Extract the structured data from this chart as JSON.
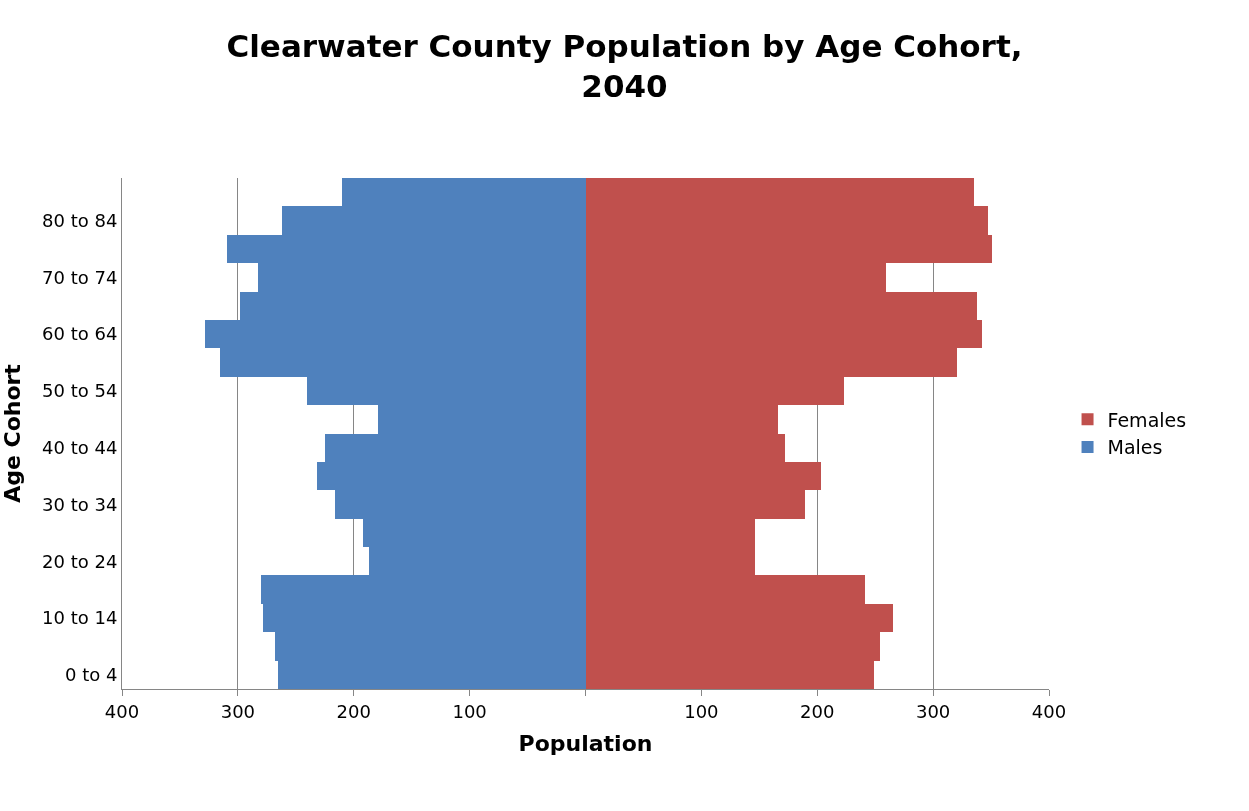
{
  "chart_data": {
    "type": "bar",
    "orientation": "horizontal",
    "stacked": true,
    "title": "Clearwater County Population by Age Cohort, 2040",
    "xlabel": "Population",
    "ylabel": "Age Cohort",
    "categories": [
      null,
      "80 to 84",
      null,
      "70 to 74",
      null,
      "60 to 64",
      null,
      "50 to 54",
      null,
      "40 to 44",
      null,
      "30 to 34",
      null,
      "20 to 24",
      null,
      "10 to 14",
      null,
      "0 to 4"
    ],
    "series": [
      {
        "name": "Males",
        "color": "#4f81bd",
        "values": [
          -210,
          -262,
          -309,
          -283,
          -298,
          -328,
          -315,
          -240,
          -179,
          -225,
          -232,
          -216,
          -192,
          -187,
          -280,
          -278,
          -268,
          -265
        ]
      },
      {
        "name": "Females",
        "color": "#c0504d",
        "values": [
          335,
          347,
          351,
          259,
          338,
          342,
          321,
          223,
          166,
          172,
          203,
          189,
          146,
          146,
          241,
          265,
          254,
          249
        ]
      }
    ],
    "xlim": [
      -400,
      400
    ],
    "xticks": [
      {
        "value": -400,
        "label": "400"
      },
      {
        "value": -300,
        "label": "300"
      },
      {
        "value": -200,
        "label": "200"
      },
      {
        "value": -100,
        "label": "100"
      },
      {
        "value": 0,
        "label": null
      },
      {
        "value": 100,
        "label": "100"
      },
      {
        "value": 200,
        "label": "200"
      },
      {
        "value": 300,
        "label": "300"
      },
      {
        "value": 400,
        "label": "400"
      }
    ],
    "grid": "x",
    "legend": "right"
  }
}
